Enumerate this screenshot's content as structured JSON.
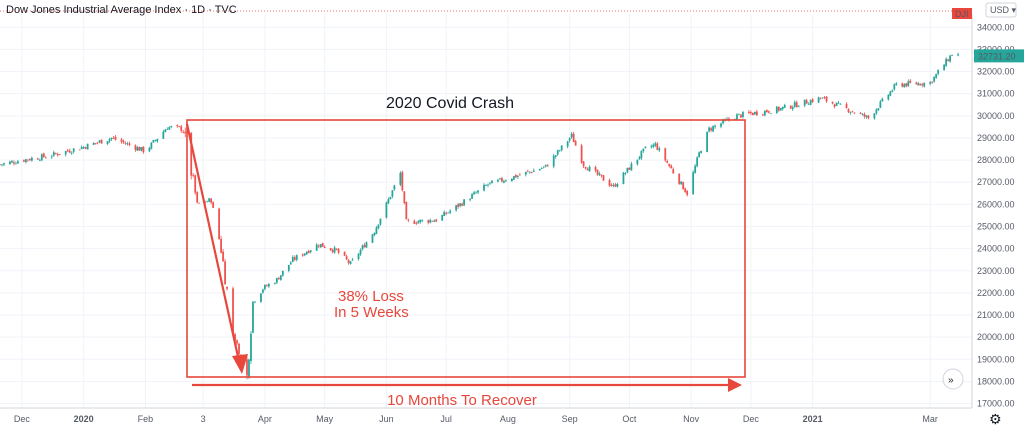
{
  "header": {
    "title": "Dow Jones Industrial Average Index · 1D · TVC",
    "currency": "USD",
    "symbol_badge": "DJI",
    "last_price": "32731.20"
  },
  "colors": {
    "up": "#26a69a",
    "down": "#ef5350",
    "annotation": "#e8473c",
    "badge": "#e8473c"
  },
  "chart_data": {
    "type": "line",
    "title": "2020 Covid Crash",
    "x_tick_labels": [
      "Dec",
      "2020",
      "Feb",
      "3",
      "Apr",
      "May",
      "Jun",
      "Jul",
      "Aug",
      "Sep",
      "Oct",
      "Nov",
      "Dec",
      "2021",
      "Mar"
    ],
    "y_tick_labels": [
      "17000.00",
      "18000.00",
      "19000.00",
      "20000.00",
      "21000.00",
      "22000.00",
      "23000.00",
      "24000.00",
      "25000.00",
      "26000.00",
      "27000.00",
      "28000.00",
      "29000.00",
      "30000.00",
      "31000.00",
      "32000.00",
      "33000.00",
      "34000.00"
    ],
    "ylim": [
      16800,
      34600
    ],
    "series": [
      {
        "values": [
          [
            "2019-11-20",
            27800
          ],
          [
            "2019-12-01",
            28000
          ],
          [
            "2019-12-15",
            28200
          ],
          [
            "2020-01-01",
            28600
          ],
          [
            "2020-01-15",
            29000
          ],
          [
            "2020-02-01",
            28400
          ],
          [
            "2020-02-12",
            29500
          ],
          [
            "2020-02-20",
            29400
          ],
          [
            "2020-02-27",
            26000
          ],
          [
            "2020-03-05",
            26200
          ],
          [
            "2020-03-10",
            24000
          ],
          [
            "2020-03-16",
            20200
          ],
          [
            "2020-03-23",
            18200
          ],
          [
            "2020-03-26",
            21600
          ],
          [
            "2020-03-31",
            22200
          ],
          [
            "2020-04-07",
            22600
          ],
          [
            "2020-04-15",
            23500
          ],
          [
            "2020-04-28",
            24200
          ],
          [
            "2020-05-07",
            23900
          ],
          [
            "2020-05-14",
            23300
          ],
          [
            "2020-05-26",
            24800
          ],
          [
            "2020-06-08",
            27400
          ],
          [
            "2020-06-11",
            25200
          ],
          [
            "2020-06-26",
            25300
          ],
          [
            "2020-07-08",
            26000
          ],
          [
            "2020-07-22",
            26900
          ],
          [
            "2020-08-06",
            27300
          ],
          [
            "2020-08-20",
            27700
          ],
          [
            "2020-09-02",
            29100
          ],
          [
            "2020-09-08",
            27800
          ],
          [
            "2020-09-23",
            26800
          ],
          [
            "2020-10-09",
            28500
          ],
          [
            "2020-10-14",
            28700
          ],
          [
            "2020-10-30",
            26500
          ],
          [
            "2020-11-05",
            28300
          ],
          [
            "2020-11-10",
            29400
          ],
          [
            "2020-11-24",
            30000
          ],
          [
            "2020-12-15",
            30300
          ],
          [
            "2021-01-05",
            30800
          ],
          [
            "2021-01-29",
            29900
          ],
          [
            "2021-02-12",
            31400
          ],
          [
            "2021-03-01",
            31500
          ],
          [
            "2021-03-12",
            32800
          ],
          [
            "2021-03-16",
            32731
          ]
        ]
      }
    ],
    "annotations": {
      "loss_line1": "38% Loss",
      "loss_line2": "In 5 Weeks",
      "recover": "10 Months To Recover"
    },
    "grid": true
  }
}
